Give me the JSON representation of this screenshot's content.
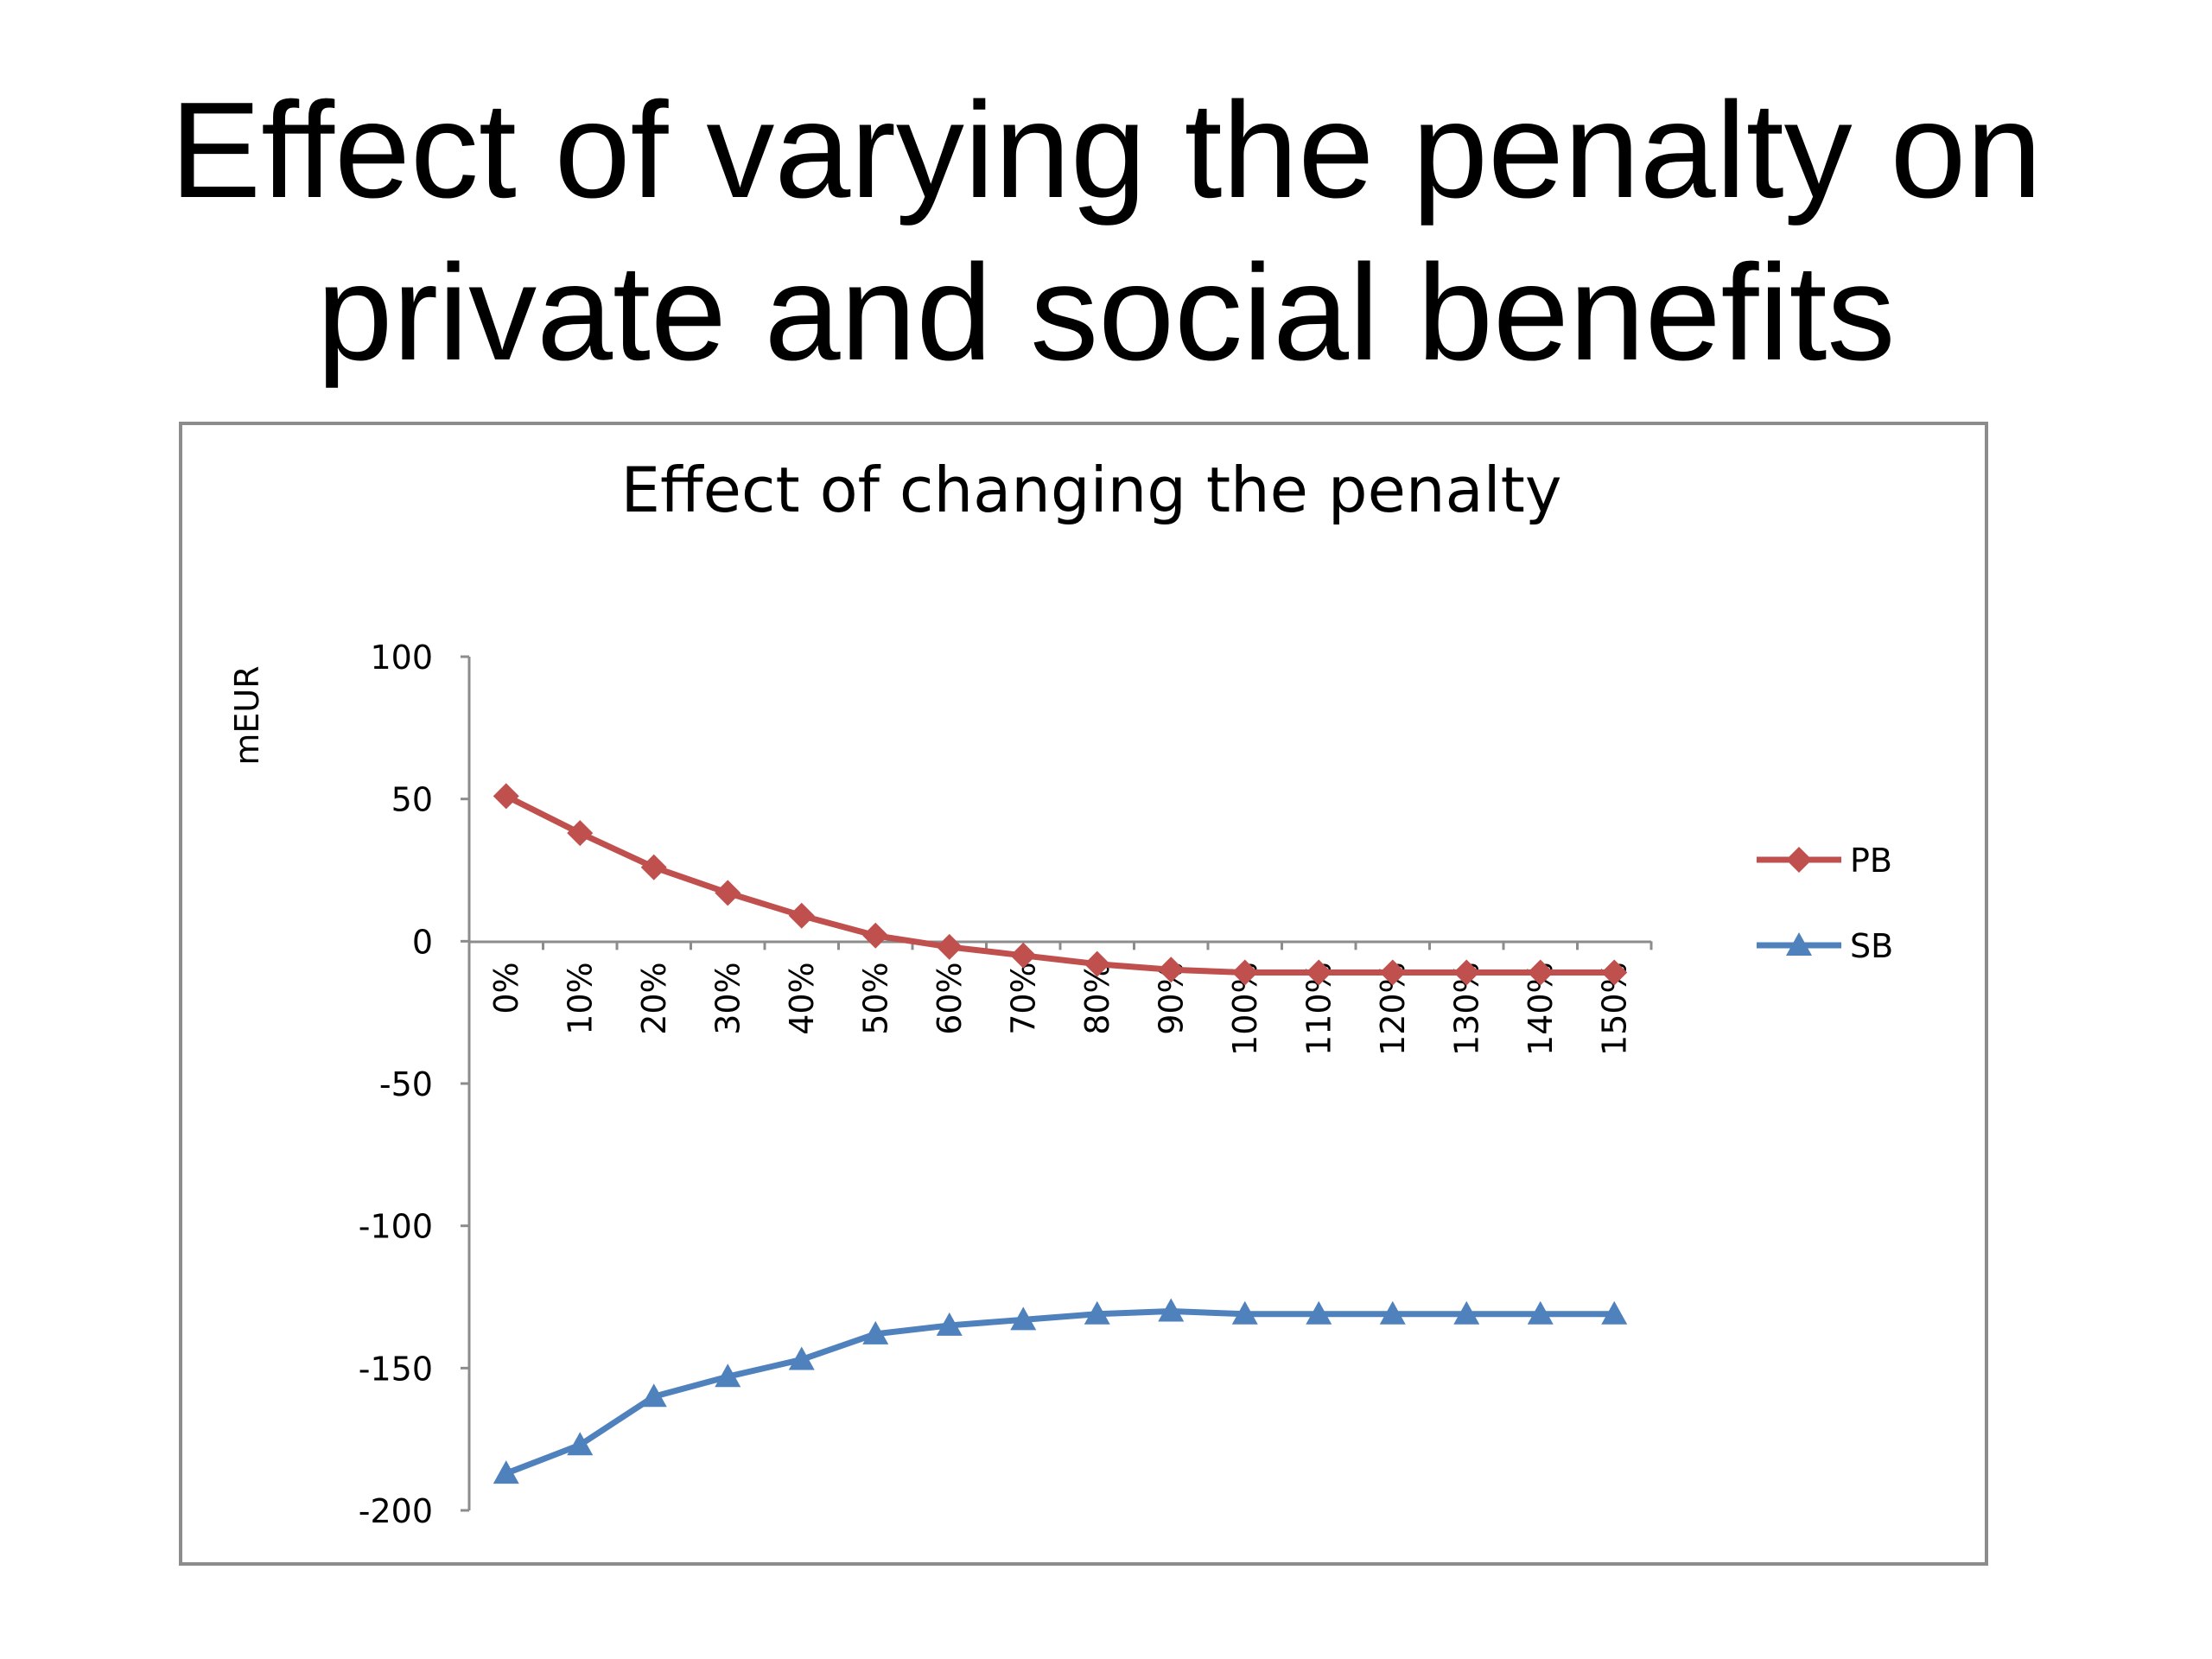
{
  "slide": {
    "title_line1": "Effect of varying the penalty on",
    "title_line2": "private and social benefits"
  },
  "chart_data": {
    "type": "line",
    "title": "Effect of changing the penalty",
    "xlabel": "",
    "ylabel": "mEUR",
    "categories": [
      "0%",
      "10%",
      "20%",
      "30%",
      "40%",
      "50%",
      "60%",
      "70%",
      "80%",
      "90%",
      "100%",
      "110%",
      "120%",
      "130%",
      "140%",
      "150%"
    ],
    "ylim": [
      -200,
      100
    ],
    "yticks": [
      "100",
      "50",
      "0",
      "-50",
      "-100",
      "-150",
      "-200"
    ],
    "ytick_values": [
      100,
      50,
      0,
      -50,
      -100,
      -150,
      -200
    ],
    "grid": false,
    "legend_position": "right",
    "series": [
      {
        "name": "PB",
        "color": "#c0504d",
        "marker": "diamond",
        "values": [
          51,
          38,
          26,
          17,
          9,
          2,
          -2,
          -5,
          -8,
          -10,
          -11,
          -11,
          -11,
          -11,
          -11,
          -11
        ]
      },
      {
        "name": "SB",
        "color": "#4f81bd",
        "marker": "triangle",
        "values": [
          -187,
          -177,
          -160,
          -153,
          -147,
          -138,
          -135,
          -133,
          -131,
          -130,
          -131,
          -131,
          -131,
          -131,
          -131,
          -131
        ]
      }
    ]
  }
}
